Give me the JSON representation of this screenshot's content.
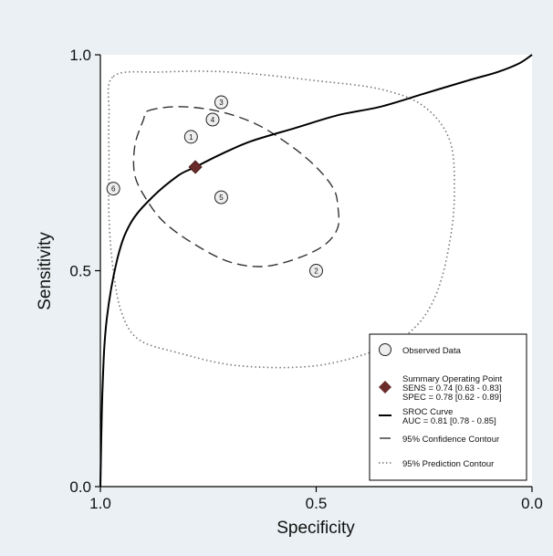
{
  "chart_data": {
    "type": "scatter",
    "xlabel": "Specificity",
    "ylabel": "Sensitivity",
    "xlim": [
      1.0,
      0.0
    ],
    "ylim": [
      0.0,
      1.0
    ],
    "x_reversed": true,
    "grid": false,
    "legend_position": "bottom-right",
    "x_ticks": [
      {
        "value": 1.0,
        "label": "1.0"
      },
      {
        "value": 0.5,
        "label": "0.5"
      },
      {
        "value": 0.0,
        "label": "0.0"
      }
    ],
    "y_ticks": [
      {
        "value": 0.0,
        "label": "0.0"
      },
      {
        "value": 0.5,
        "label": "0.5"
      },
      {
        "value": 1.0,
        "label": "1.0"
      }
    ],
    "observed_data": [
      {
        "label": "1",
        "specificity": 0.79,
        "sensitivity": 0.81
      },
      {
        "label": "2",
        "specificity": 0.5,
        "sensitivity": 0.5
      },
      {
        "label": "3",
        "specificity": 0.72,
        "sensitivity": 0.89
      },
      {
        "label": "4",
        "specificity": 0.74,
        "sensitivity": 0.85
      },
      {
        "label": "5",
        "specificity": 0.72,
        "sensitivity": 0.67
      },
      {
        "label": "6",
        "specificity": 0.97,
        "sensitivity": 0.69
      }
    ],
    "summary_point": {
      "specificity": 0.78,
      "sensitivity": 0.74
    },
    "sroc_curve": [
      {
        "specificity": 1.0,
        "sensitivity": 0.0
      },
      {
        "specificity": 0.995,
        "sensitivity": 0.23
      },
      {
        "specificity": 0.985,
        "sensitivity": 0.39
      },
      {
        "specificity": 0.96,
        "sensitivity": 0.53
      },
      {
        "specificity": 0.93,
        "sensitivity": 0.61
      },
      {
        "specificity": 0.88,
        "sensitivity": 0.67
      },
      {
        "specificity": 0.82,
        "sensitivity": 0.72
      },
      {
        "specificity": 0.78,
        "sensitivity": 0.74
      },
      {
        "specificity": 0.72,
        "sensitivity": 0.77
      },
      {
        "specificity": 0.65,
        "sensitivity": 0.8
      },
      {
        "specificity": 0.55,
        "sensitivity": 0.83
      },
      {
        "specificity": 0.45,
        "sensitivity": 0.86
      },
      {
        "specificity": 0.35,
        "sensitivity": 0.88
      },
      {
        "specificity": 0.25,
        "sensitivity": 0.91
      },
      {
        "specificity": 0.15,
        "sensitivity": 0.94
      },
      {
        "specificity": 0.08,
        "sensitivity": 0.96
      },
      {
        "specificity": 0.03,
        "sensitivity": 0.98
      },
      {
        "specificity": 0.0,
        "sensitivity": 1.0
      }
    ],
    "confidence_contour": [
      {
        "specificity": 0.89,
        "sensitivity": 0.87
      },
      {
        "specificity": 0.82,
        "sensitivity": 0.88
      },
      {
        "specificity": 0.73,
        "sensitivity": 0.87
      },
      {
        "specificity": 0.64,
        "sensitivity": 0.84
      },
      {
        "specificity": 0.56,
        "sensitivity": 0.79
      },
      {
        "specificity": 0.5,
        "sensitivity": 0.74
      },
      {
        "specificity": 0.46,
        "sensitivity": 0.69
      },
      {
        "specificity": 0.45,
        "sensitivity": 0.65
      },
      {
        "specificity": 0.45,
        "sensitivity": 0.6
      },
      {
        "specificity": 0.48,
        "sensitivity": 0.56
      },
      {
        "specificity": 0.54,
        "sensitivity": 0.53
      },
      {
        "specificity": 0.62,
        "sensitivity": 0.51
      },
      {
        "specificity": 0.7,
        "sensitivity": 0.52
      },
      {
        "specificity": 0.78,
        "sensitivity": 0.56
      },
      {
        "specificity": 0.85,
        "sensitivity": 0.61
      },
      {
        "specificity": 0.89,
        "sensitivity": 0.66
      },
      {
        "specificity": 0.92,
        "sensitivity": 0.72
      },
      {
        "specificity": 0.92,
        "sensitivity": 0.79
      },
      {
        "specificity": 0.9,
        "sensitivity": 0.85
      }
    ],
    "prediction_contour": [
      {
        "specificity": 0.97,
        "sensitivity": 0.95
      },
      {
        "specificity": 0.86,
        "sensitivity": 0.96
      },
      {
        "specificity": 0.7,
        "sensitivity": 0.96
      },
      {
        "specificity": 0.5,
        "sensitivity": 0.94
      },
      {
        "specificity": 0.35,
        "sensitivity": 0.92
      },
      {
        "specificity": 0.25,
        "sensitivity": 0.88
      },
      {
        "specificity": 0.19,
        "sensitivity": 0.8
      },
      {
        "specificity": 0.18,
        "sensitivity": 0.68
      },
      {
        "specificity": 0.19,
        "sensitivity": 0.57
      },
      {
        "specificity": 0.22,
        "sensitivity": 0.45
      },
      {
        "specificity": 0.27,
        "sensitivity": 0.37
      },
      {
        "specificity": 0.35,
        "sensitivity": 0.32
      },
      {
        "specificity": 0.5,
        "sensitivity": 0.28
      },
      {
        "specificity": 0.68,
        "sensitivity": 0.28
      },
      {
        "specificity": 0.82,
        "sensitivity": 0.31
      },
      {
        "specificity": 0.91,
        "sensitivity": 0.34
      },
      {
        "specificity": 0.95,
        "sensitivity": 0.4
      },
      {
        "specificity": 0.97,
        "sensitivity": 0.5
      },
      {
        "specificity": 0.98,
        "sensitivity": 0.62
      },
      {
        "specificity": 0.98,
        "sensitivity": 0.74
      },
      {
        "specificity": 0.98,
        "sensitivity": 0.86
      }
    ],
    "legend": [
      {
        "key": "observed",
        "lines": [
          "Observed Data"
        ]
      },
      {
        "key": "summary",
        "lines": [
          "Summary Operating Point",
          "SENS = 0.74 [0.63 - 0.83]",
          "SPEC = 0.78 [0.62 - 0.89]"
        ]
      },
      {
        "key": "sroc",
        "lines": [
          "SROC Curve",
          "AUC = 0.81 [0.78 - 0.85]"
        ]
      },
      {
        "key": "confidence",
        "lines": [
          "95% Confidence Contour"
        ]
      },
      {
        "key": "prediction",
        "lines": [
          "95% Prediction Contour"
        ]
      }
    ],
    "colors": {
      "outer_background": "#eaf0f3",
      "plot_background": "#ffffff",
      "curve": "#000000",
      "confidence": "#333333",
      "prediction": "#777777",
      "marker_fill": "#eeeeee",
      "summary": "#6b2a2a",
      "text": "#111111"
    }
  }
}
